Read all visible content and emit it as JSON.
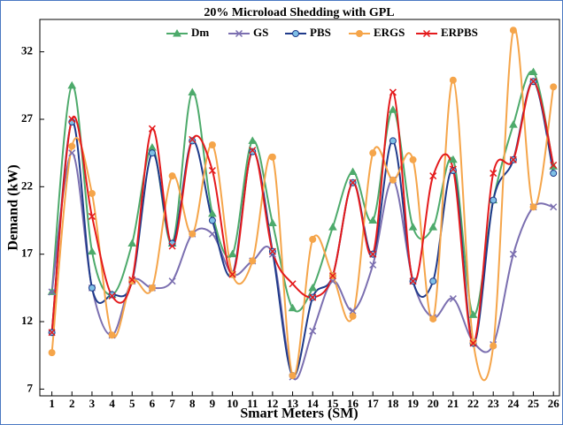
{
  "chart_data": {
    "type": "line",
    "title": "20% Microload Shedding with GPL",
    "x_label": "Smart Meters (SM)",
    "y_label": "Demand (kW)",
    "x": [
      1,
      2,
      3,
      4,
      5,
      6,
      7,
      8,
      9,
      10,
      11,
      12,
      13,
      14,
      15,
      16,
      17,
      18,
      19,
      20,
      21,
      22,
      23,
      24,
      25,
      26
    ],
    "xlim": [
      0.4,
      26.3
    ],
    "xticks": [
      1,
      2,
      3,
      4,
      5,
      6,
      7,
      8,
      9,
      10,
      11,
      12,
      13,
      14,
      15,
      16,
      17,
      18,
      19,
      20,
      21,
      22,
      23,
      24,
      25,
      26
    ],
    "ylim": [
      6.5,
      34.4
    ],
    "yticks": [
      7,
      12,
      17,
      22,
      27,
      32
    ],
    "legend": "top",
    "series": [
      {
        "name": "Dm",
        "color": "#4daa6b",
        "marker": "triangle",
        "values": [
          14.2,
          29.5,
          17.2,
          14.0,
          17.8,
          24.9,
          17.8,
          29.0,
          20.0,
          17.0,
          25.4,
          19.3,
          13.0,
          14.5,
          19.0,
          23.1,
          19.5,
          27.7,
          19.0,
          19.0,
          24.0,
          12.5,
          21.0,
          26.6,
          30.5,
          23.5
        ]
      },
      {
        "name": "GS",
        "color": "#7b6fb0",
        "marker": "x",
        "values": [
          14.2,
          24.5,
          14.5,
          11.0,
          15.0,
          14.5,
          15.0,
          18.5,
          18.5,
          15.5,
          16.5,
          17.0,
          7.9,
          11.3,
          15.0,
          12.8,
          16.2,
          22.5,
          15.0,
          12.3,
          13.7,
          10.5,
          10.3,
          17.0,
          20.5,
          20.5
        ]
      },
      {
        "name": "PBS",
        "color": "#1f3a8a",
        "marker": "circle",
        "values": [
          11.2,
          26.8,
          14.5,
          14.0,
          15.0,
          24.5,
          17.8,
          25.4,
          19.5,
          15.5,
          24.6,
          17.2,
          8.0,
          13.8,
          15.4,
          22.3,
          17.0,
          25.4,
          15.0,
          15.0,
          23.2,
          10.4,
          21.0,
          24.0,
          29.8,
          23.0
        ]
      },
      {
        "name": "ERGS",
        "color": "#f5a54a",
        "marker": "circle",
        "values": [
          9.7,
          25.0,
          21.5,
          11.0,
          15.0,
          14.5,
          22.8,
          18.5,
          25.1,
          15.5,
          16.5,
          24.2,
          8.0,
          18.1,
          15.4,
          12.4,
          24.5,
          22.5,
          24.0,
          12.2,
          29.9,
          10.5,
          10.2,
          33.6,
          20.5,
          29.4
        ]
      },
      {
        "name": "ERPBS",
        "color": "#e41a1c",
        "marker": "x",
        "values": [
          11.2,
          27.0,
          19.8,
          13.9,
          15.1,
          26.3,
          17.6,
          25.5,
          23.2,
          15.5,
          24.7,
          17.2,
          14.8,
          13.8,
          15.4,
          22.3,
          17.0,
          29.0,
          15.0,
          22.8,
          23.3,
          10.4,
          23.0,
          24.0,
          29.8,
          23.6
        ]
      }
    ]
  }
}
